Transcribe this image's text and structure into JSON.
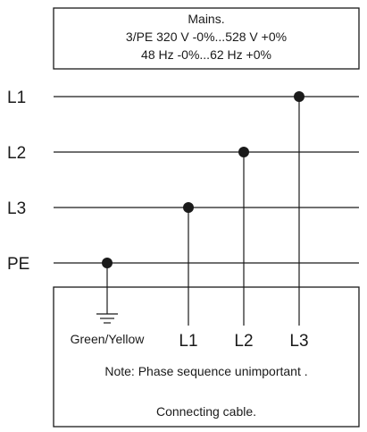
{
  "mains": {
    "title": "Mains.",
    "voltage": "3/PE 320 V -0%...528 V +0%",
    "frequency": "48 Hz -0%...62 Hz +0%"
  },
  "rails": {
    "l1": "L1",
    "l2": "L2",
    "l3": "L3",
    "pe": "PE"
  },
  "cable": {
    "ground_label": "Green/Yellow",
    "terminal_l1": "L1",
    "terminal_l2": "L2",
    "terminal_l3": "L3",
    "note": "Note: Phase sequence unimportant .",
    "caption": "Connecting cable."
  },
  "ground_icon": "ground-icon"
}
